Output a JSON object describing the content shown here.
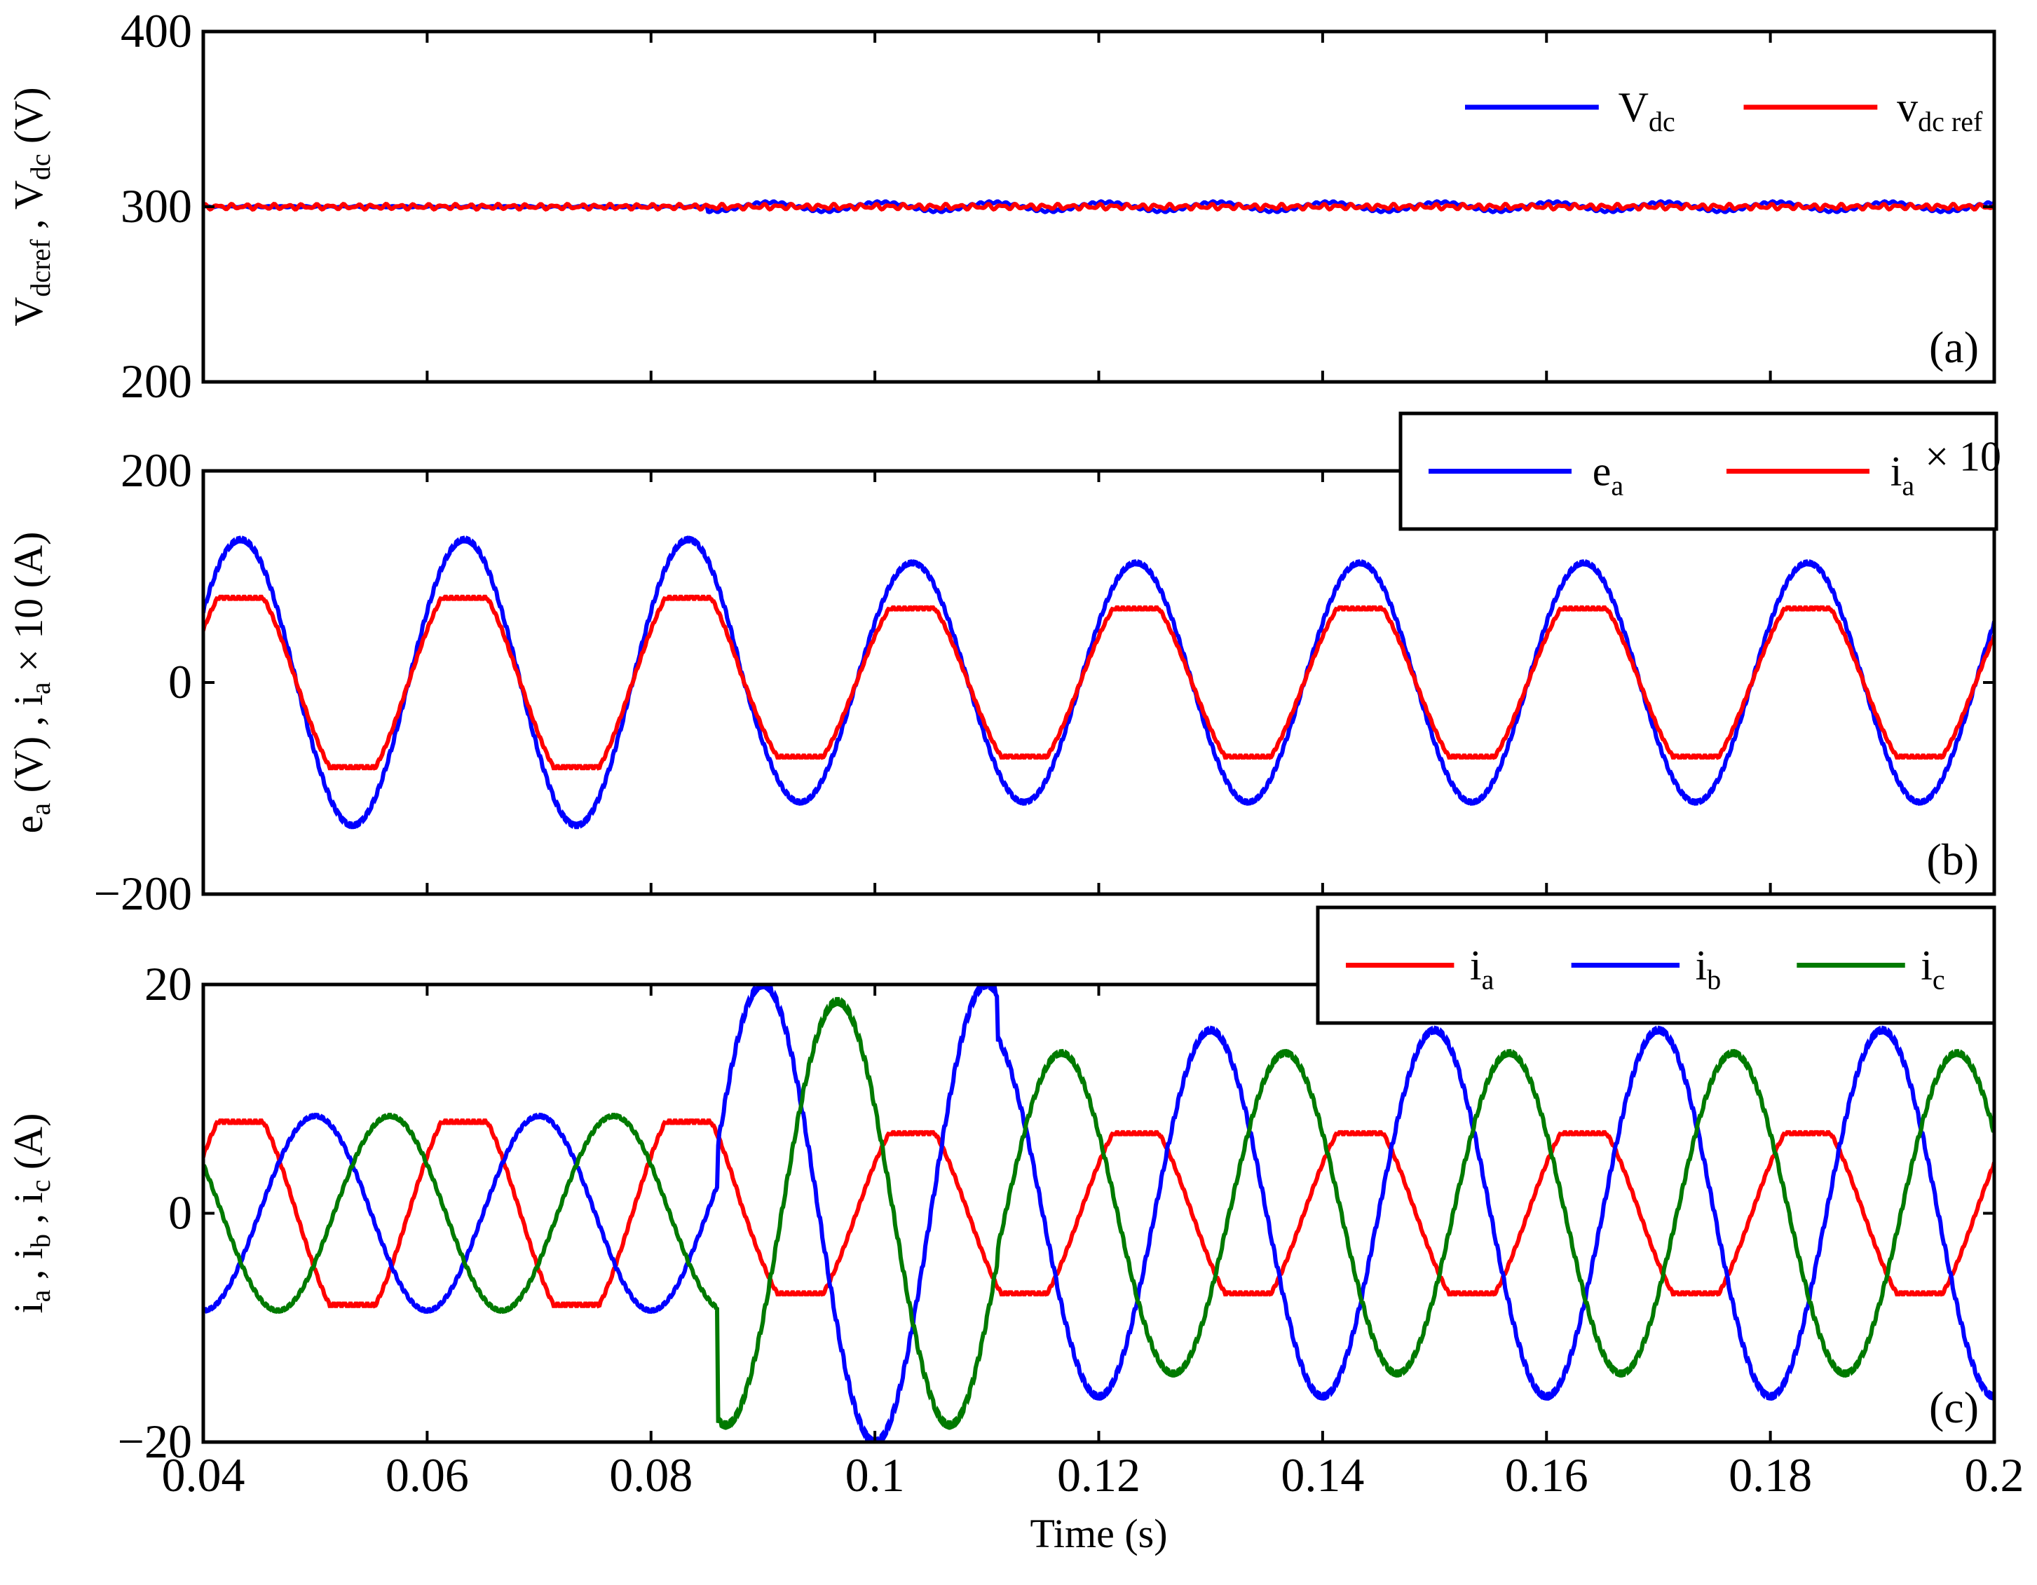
{
  "chart_data": [
    {
      "type": "line",
      "panel_label": "(a)",
      "ylabel": "V_dcref , V_dc (V)",
      "ylabel_parts": [
        [
          "V",
          "dcref"
        ],
        [
          " , ",
          ""
        ],
        [
          "V",
          "dc"
        ],
        [
          " (V)",
          ""
        ]
      ],
      "xlim": [
        0.04,
        0.2
      ],
      "ylim": [
        200,
        400
      ],
      "yticks": [
        "200",
        "300",
        "400"
      ],
      "ytick_values": [
        200,
        300,
        400
      ],
      "legend_placement": "top-right",
      "legend_boxed": false,
      "series": [
        {
          "name": "V_dc",
          "label": [
            "V",
            "dc"
          ],
          "color": "#0000ff",
          "model": {
            "kind": "dc",
            "level": 300,
            "ripple": 2.5,
            "ripple_start": 0.085,
            "freq": 50
          }
        },
        {
          "name": "v_dc ref",
          "label": [
            "v",
            "dc ref"
          ],
          "color": "#ff0000",
          "model": {
            "kind": "dc",
            "level": 300,
            "ripple": 1.0,
            "ripple_start": 0.04,
            "freq": 400
          }
        }
      ]
    },
    {
      "type": "line",
      "panel_label": "(b)",
      "ylabel": "e_a (V) , i_a × 10 (A)",
      "ylabel_parts": [
        [
          "e",
          "a"
        ],
        [
          " (V) , ",
          ""
        ],
        [
          "i",
          "a"
        ],
        [
          " × 10 (A)",
          ""
        ]
      ],
      "xlim": [
        0.04,
        0.2
      ],
      "ylim": [
        -200,
        200
      ],
      "yticks": [
        "−200",
        "0",
        "200"
      ],
      "ytick_values": [
        -200,
        0,
        200
      ],
      "legend_placement": "top-right",
      "legend_boxed": true,
      "series": [
        {
          "name": "e_a",
          "label": [
            "e",
            "a"
          ],
          "color": "#0000ff",
          "model": {
            "kind": "sine",
            "freq": 50,
            "phase_deg": 30,
            "amp_before": 135,
            "amp_after": 113,
            "switch_t": 0.088
          }
        },
        {
          "name": "i_a × 10",
          "label": [
            "i",
            "a",
            " × 10"
          ],
          "color": "#ff0000",
          "model": {
            "kind": "sine",
            "freq": 50,
            "phase_deg": 30,
            "amp_before": 80,
            "amp_after": 70,
            "switch_t": 0.088,
            "flatten": 0.25
          }
        }
      ]
    },
    {
      "type": "line",
      "panel_label": "(c)",
      "xlabel": "Time (s)",
      "ylabel": "i_a , i_b , i_c (A)",
      "ylabel_parts": [
        [
          "i",
          "a"
        ],
        [
          " , ",
          ""
        ],
        [
          "i",
          "b"
        ],
        [
          " , ",
          ""
        ],
        [
          "i",
          "c"
        ],
        [
          " (A)",
          ""
        ]
      ],
      "xlim": [
        0.04,
        0.2
      ],
      "ylim": [
        -20,
        20
      ],
      "xticks": [
        "0.04",
        "0.06",
        "0.08",
        "0.1",
        "0.12",
        "0.14",
        "0.16",
        "0.18",
        "0.2"
      ],
      "xtick_values": [
        0.04,
        0.06,
        0.08,
        0.1,
        0.12,
        0.14,
        0.16,
        0.18,
        0.2
      ],
      "yticks": [
        "−20",
        "0",
        "20"
      ],
      "ytick_values": [
        -20,
        0,
        20
      ],
      "legend_placement": "top-right",
      "legend_boxed": true,
      "series": [
        {
          "name": "i_a",
          "label": [
            "i",
            "a"
          ],
          "color": "#ff0000",
          "model": {
            "kind": "sine",
            "freq": 50,
            "phase_deg": 30,
            "amp_before": 8,
            "amp_after": 7,
            "switch_t": 0.088,
            "flatten": 0.25
          }
        },
        {
          "name": "i_b",
          "label": [
            "i",
            "b"
          ],
          "color": "#0000ff",
          "model": {
            "kind": "sine",
            "freq": 50,
            "phase_deg": -90,
            "amp_before": 8.5,
            "amp_after": 16,
            "switch_t": 0.086,
            "peak": 20
          }
        },
        {
          "name": "i_c",
          "label": [
            "i",
            "c"
          ],
          "color": "#007a00",
          "model": {
            "kind": "sine",
            "freq": 50,
            "phase_deg": 150,
            "amp_before": 8.5,
            "amp_after": 14,
            "switch_t": 0.086,
            "peak": 18.5
          }
        }
      ]
    }
  ]
}
